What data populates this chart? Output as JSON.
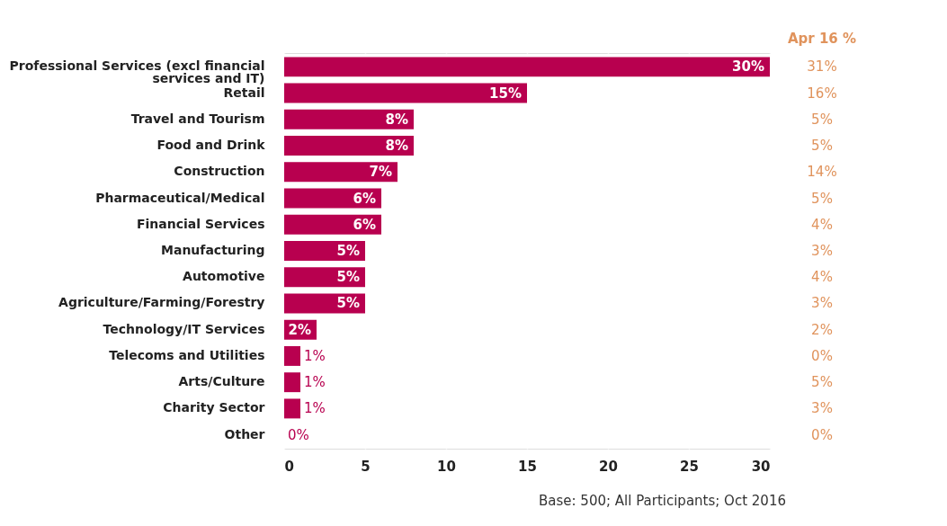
{
  "chart_data": {
    "type": "bar",
    "orientation": "horizontal",
    "categories": [
      "Professional Services (excl financial services and IT)",
      "Retail",
      "Travel and Tourism",
      "Food and Drink",
      "Construction",
      "Pharmaceutical/Medical",
      "Financial Services",
      "Manufacturing",
      "Automotive",
      "Agriculture/Farming/Forestry",
      "Technology/IT Services",
      "Telecoms and Utilities",
      "Arts/Culture",
      "Charity Sector",
      "Other"
    ],
    "values": [
      30,
      15,
      8,
      8,
      7,
      6,
      6,
      5,
      5,
      5,
      2,
      1,
      1,
      1,
      0
    ],
    "value_labels": [
      "30%",
      "15%",
      "8%",
      "8%",
      "7%",
      "6%",
      "6%",
      "5%",
      "5%",
      "5%",
      "2%",
      "1%",
      "1%",
      "1%",
      "0%"
    ],
    "color": "#b8004f",
    "xlim": [
      0,
      30
    ],
    "xticks": [
      0,
      5,
      10,
      15,
      20,
      25,
      30
    ],
    "grid": "x",
    "annotations": [
      "Apr 16 %",
      "31%",
      "16%",
      "5%",
      "5%",
      "14%",
      "5%",
      "4%",
      "3%",
      "4%",
      "3%",
      "2%",
      "0%",
      "5%",
      "3%",
      "0%",
      "Base: 500; All Participants; Oct 2016"
    ]
  }
}
